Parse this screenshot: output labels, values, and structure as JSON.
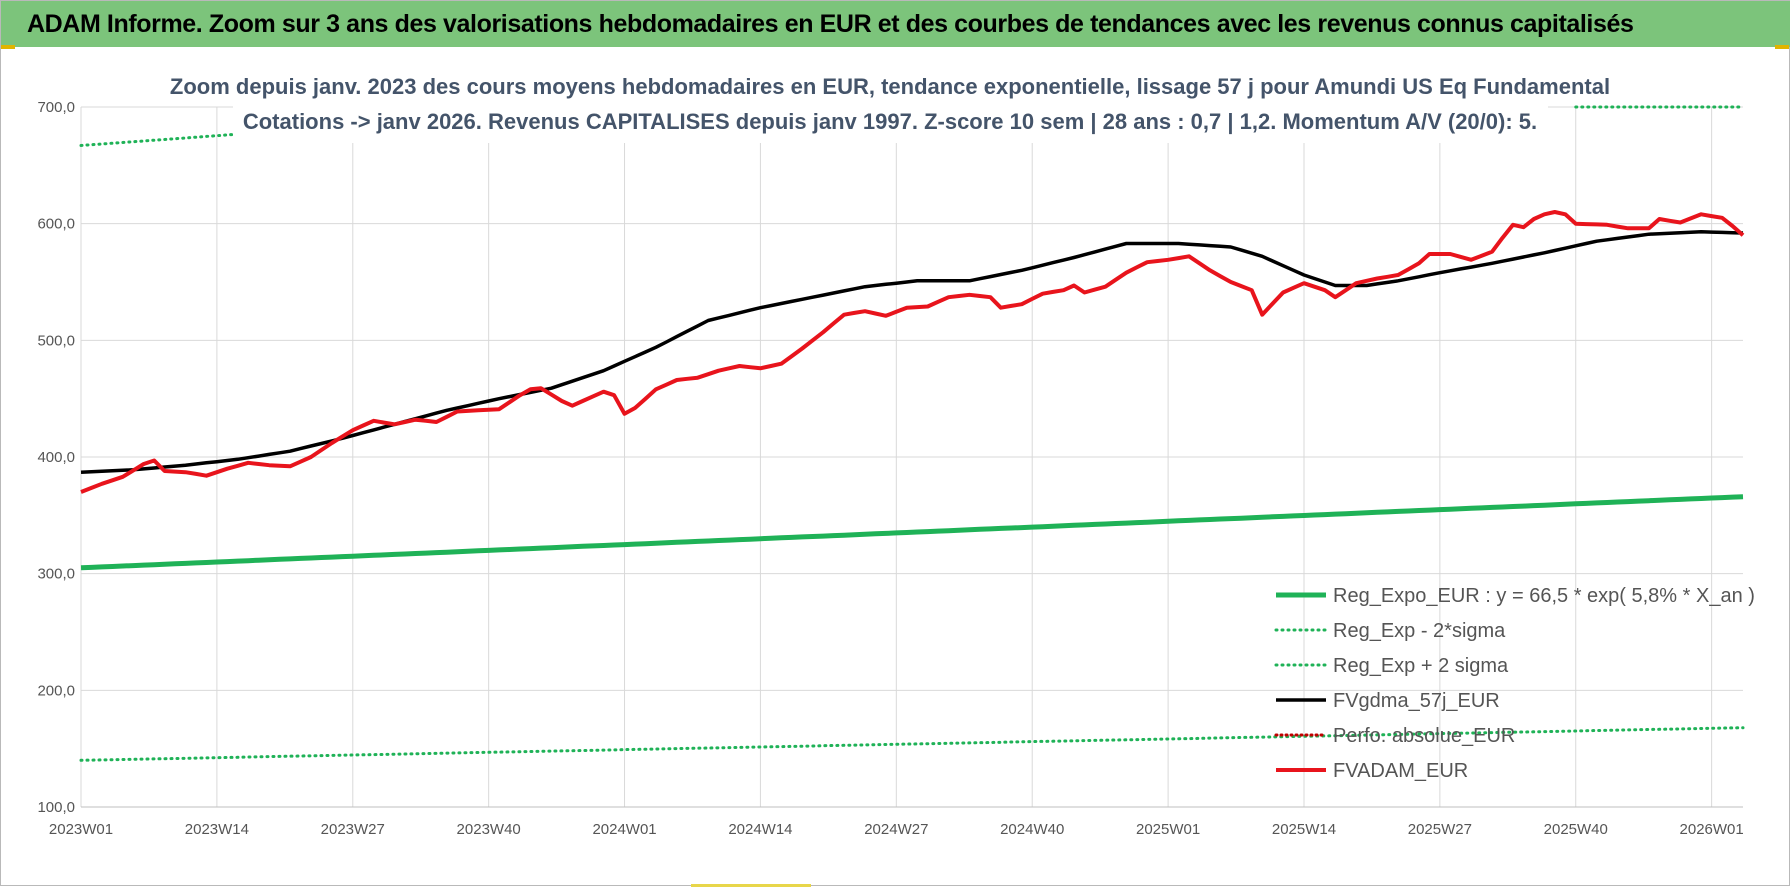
{
  "header": {
    "title": "ADAM Informe. Zoom sur 3 ans des valorisations hebdomadaires en EUR et des courbes de tendances avec les revenus connus capitalisés"
  },
  "colors": {
    "banner": "#7cc47b",
    "reg_expo": "#1fb257",
    "sigma": "#1fb257",
    "fvgdma": "#000000",
    "perfo": "#c00000",
    "fvadam": "#e8141c",
    "grid": "#d9d9d9",
    "title": "#44546a"
  },
  "chart_data": {
    "type": "line",
    "title": "Zoom depuis janv. 2023 des cours moyens hebdomadaires en EUR, tendance exponentielle, lissage 57 j pour Amundi US Eq Fundamental",
    "subtitle": "Cotations -> janv 2026. Revenus CAPITALISES depuis janv 1997. Z-score 10 sem | 28 ans : 0,7 | 1,2. Momentum A/V (20/0): 5.",
    "xlabel": "",
    "ylabel": "",
    "ylim": [
      100,
      700
    ],
    "yticks": [
      100,
      200,
      300,
      400,
      500,
      600,
      700
    ],
    "ytick_labels": [
      "100,0",
      "200,0",
      "300,0",
      "400,0",
      "500,0",
      "600,0",
      "700,0"
    ],
    "x_count": 160,
    "x_tick_labels": [
      "2023W01",
      "2023W14",
      "2023W27",
      "2023W40",
      "2024W01",
      "2024W14",
      "2024W27",
      "2024W40",
      "2025W01",
      "2025W14",
      "2025W27",
      "2025W40",
      "2026W01"
    ],
    "x_tick_index": [
      0,
      13,
      26,
      39,
      52,
      65,
      78,
      91,
      104,
      117,
      130,
      143,
      156
    ],
    "grid": true,
    "legend_position": "bottom-right",
    "series": [
      {
        "name": "Reg_Expo_EUR : y = 66,5 * exp( 5,8% *  X_an )",
        "style": "solid-thick",
        "anchors": [
          [
            0,
            305
          ],
          [
            159,
            366
          ]
        ]
      },
      {
        "name": "Reg_Exp - 2*sigma",
        "style": "dotted",
        "anchors": [
          [
            0,
            140
          ],
          [
            159,
            168
          ]
        ]
      },
      {
        "name": "Reg_Exp + 2 sigma",
        "style": "dotted",
        "anchors": [
          [
            0,
            667
          ],
          [
            17,
            678
          ],
          [
            143,
            700
          ],
          [
            159,
            700
          ]
        ],
        "hidden_ranges": [
          [
            17,
            143
          ]
        ]
      },
      {
        "name": "FVgdma_57j_EUR",
        "style": "solid",
        "anchors": [
          [
            0,
            387
          ],
          [
            5,
            389
          ],
          [
            10,
            393
          ],
          [
            15,
            398
          ],
          [
            20,
            405
          ],
          [
            25,
            416
          ],
          [
            30,
            428
          ],
          [
            35,
            440
          ],
          [
            40,
            450
          ],
          [
            45,
            459
          ],
          [
            50,
            474
          ],
          [
            55,
            494
          ],
          [
            60,
            517
          ],
          [
            65,
            528
          ],
          [
            70,
            537
          ],
          [
            75,
            546
          ],
          [
            80,
            551
          ],
          [
            85,
            551
          ],
          [
            90,
            560
          ],
          [
            95,
            571
          ],
          [
            100,
            583
          ],
          [
            105,
            583
          ],
          [
            110,
            580
          ],
          [
            113,
            572
          ],
          [
            117,
            556
          ],
          [
            120,
            547
          ],
          [
            123,
            547
          ],
          [
            126,
            551
          ],
          [
            130,
            558
          ],
          [
            135,
            566
          ],
          [
            140,
            575
          ],
          [
            145,
            585
          ],
          [
            150,
            591
          ],
          [
            155,
            593
          ],
          [
            159,
            592
          ]
        ]
      },
      {
        "name": "Perfo. absolue_EUR",
        "style": "dotted-red",
        "anchors": []
      },
      {
        "name": "FVADAM_EUR",
        "style": "solid-thick",
        "anchors": [
          [
            0,
            370
          ],
          [
            2,
            377
          ],
          [
            4,
            383
          ],
          [
            6,
            394
          ],
          [
            7,
            397
          ],
          [
            8,
            388
          ],
          [
            10,
            387
          ],
          [
            12,
            384
          ],
          [
            14,
            390
          ],
          [
            16,
            395
          ],
          [
            18,
            393
          ],
          [
            20,
            392
          ],
          [
            22,
            400
          ],
          [
            24,
            412
          ],
          [
            26,
            423
          ],
          [
            28,
            431
          ],
          [
            30,
            428
          ],
          [
            32,
            432
          ],
          [
            34,
            430
          ],
          [
            36,
            439
          ],
          [
            40,
            441
          ],
          [
            42,
            453
          ],
          [
            43,
            458
          ],
          [
            44,
            459
          ],
          [
            46,
            448
          ],
          [
            47,
            444
          ],
          [
            49,
            452
          ],
          [
            50,
            456
          ],
          [
            51,
            453
          ],
          [
            52,
            437
          ],
          [
            53,
            442
          ],
          [
            55,
            458
          ],
          [
            57,
            466
          ],
          [
            59,
            468
          ],
          [
            61,
            474
          ],
          [
            63,
            478
          ],
          [
            65,
            476
          ],
          [
            67,
            480
          ],
          [
            69,
            493
          ],
          [
            71,
            507
          ],
          [
            73,
            522
          ],
          [
            75,
            525
          ],
          [
            77,
            521
          ],
          [
            79,
            528
          ],
          [
            81,
            529
          ],
          [
            83,
            537
          ],
          [
            85,
            539
          ],
          [
            87,
            537
          ],
          [
            88,
            528
          ],
          [
            90,
            531
          ],
          [
            92,
            540
          ],
          [
            94,
            543
          ],
          [
            95,
            547
          ],
          [
            96,
            541
          ],
          [
            98,
            546
          ],
          [
            100,
            558
          ],
          [
            102,
            567
          ],
          [
            104,
            569
          ],
          [
            106,
            572
          ],
          [
            108,
            560
          ],
          [
            110,
            550
          ],
          [
            112,
            543
          ],
          [
            113,
            522
          ],
          [
            115,
            541
          ],
          [
            117,
            549
          ],
          [
            119,
            543
          ],
          [
            120,
            537
          ],
          [
            122,
            549
          ],
          [
            124,
            553
          ],
          [
            126,
            556
          ],
          [
            128,
            566
          ],
          [
            129,
            574
          ],
          [
            131,
            574
          ],
          [
            133,
            569
          ],
          [
            135,
            576
          ],
          [
            136,
            588
          ],
          [
            137,
            599
          ],
          [
            138,
            597
          ],
          [
            139,
            604
          ],
          [
            140,
            608
          ],
          [
            141,
            610
          ],
          [
            142,
            608
          ],
          [
            143,
            600
          ],
          [
            146,
            599
          ],
          [
            148,
            596
          ],
          [
            150,
            596
          ],
          [
            151,
            604
          ],
          [
            153,
            601
          ],
          [
            155,
            608
          ],
          [
            157,
            605
          ],
          [
            158,
            598
          ],
          [
            159,
            590
          ]
        ]
      }
    ]
  }
}
